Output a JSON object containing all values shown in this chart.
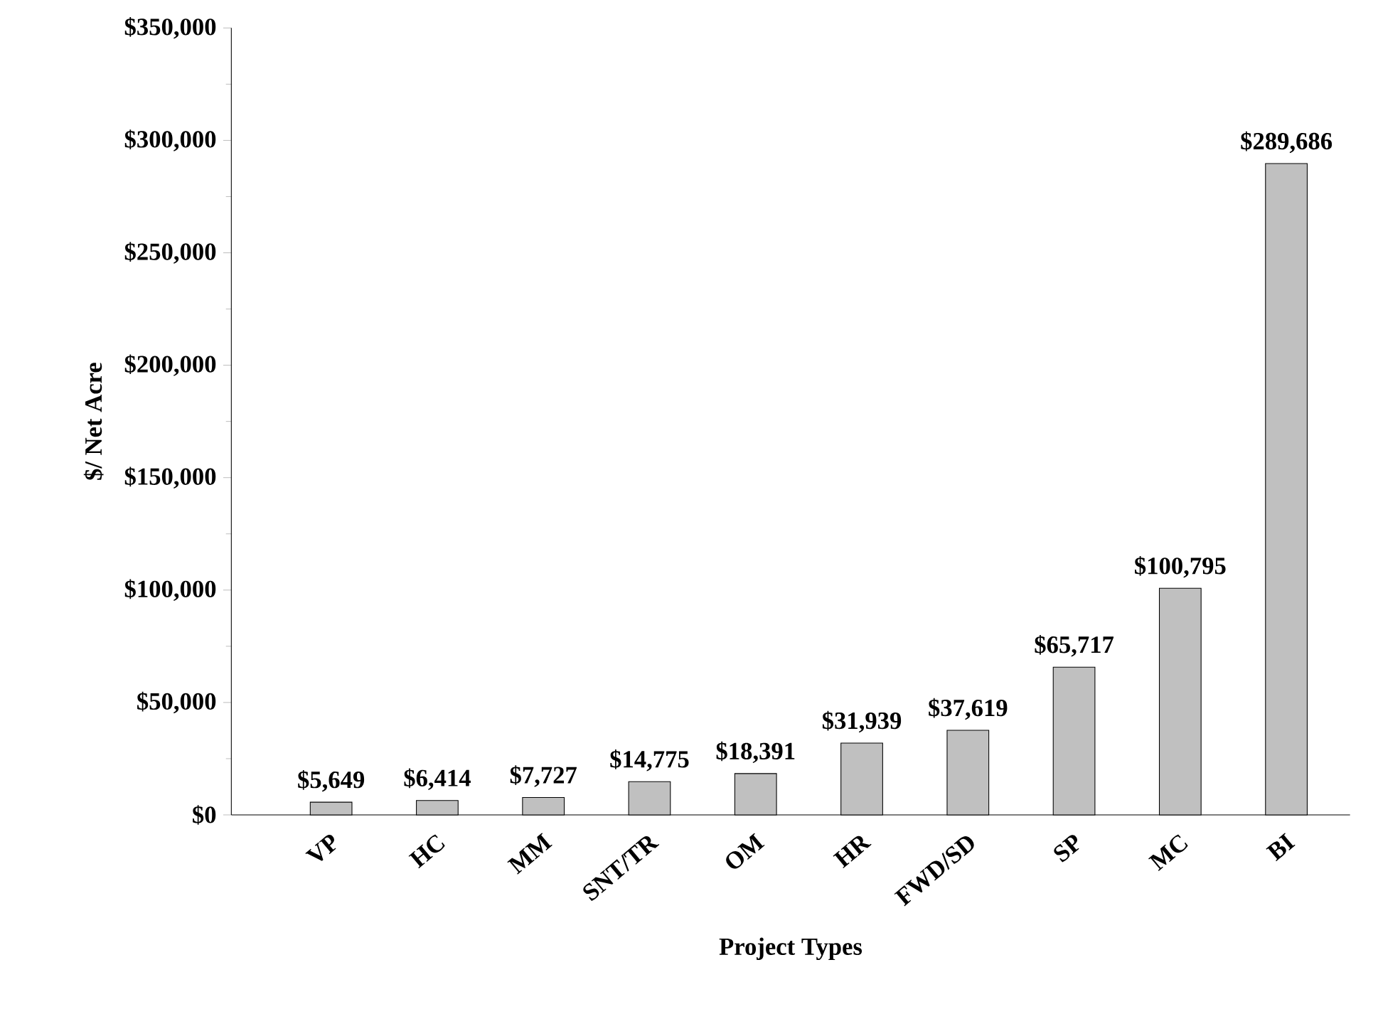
{
  "chart_data": {
    "type": "bar",
    "xlabel": "Project Types",
    "ylabel": "$/ Net Acre",
    "categories": [
      "VP",
      "HC",
      "MM",
      "SNT/TR",
      "OM",
      "HR",
      "FWD/SD",
      "SP",
      "MC",
      "BI"
    ],
    "values": [
      5649,
      6414,
      7727,
      14775,
      18391,
      31939,
      37619,
      65717,
      100795,
      289686
    ],
    "value_labels": [
      "$5,649",
      "$6,414",
      "$7,727",
      "$14,775",
      "$18,391",
      "$31,939",
      "$37,619",
      "$65,717",
      "$100,795",
      "$289,686"
    ],
    "color": "#c0c0c0",
    "ylim": [
      0,
      350000
    ],
    "yticks": [
      {
        "value": 0,
        "label": "$0"
      },
      {
        "value": 50000,
        "label": "$50,000"
      },
      {
        "value": 100000,
        "label": "$100,000"
      },
      {
        "value": 150000,
        "label": "$150,000"
      },
      {
        "value": 200000,
        "label": "$200,000"
      },
      {
        "value": 250000,
        "label": "$250,000"
      },
      {
        "value": 300000,
        "label": "$300,000"
      },
      {
        "value": 350000,
        "label": "$350,000"
      }
    ],
    "grid": false
  }
}
